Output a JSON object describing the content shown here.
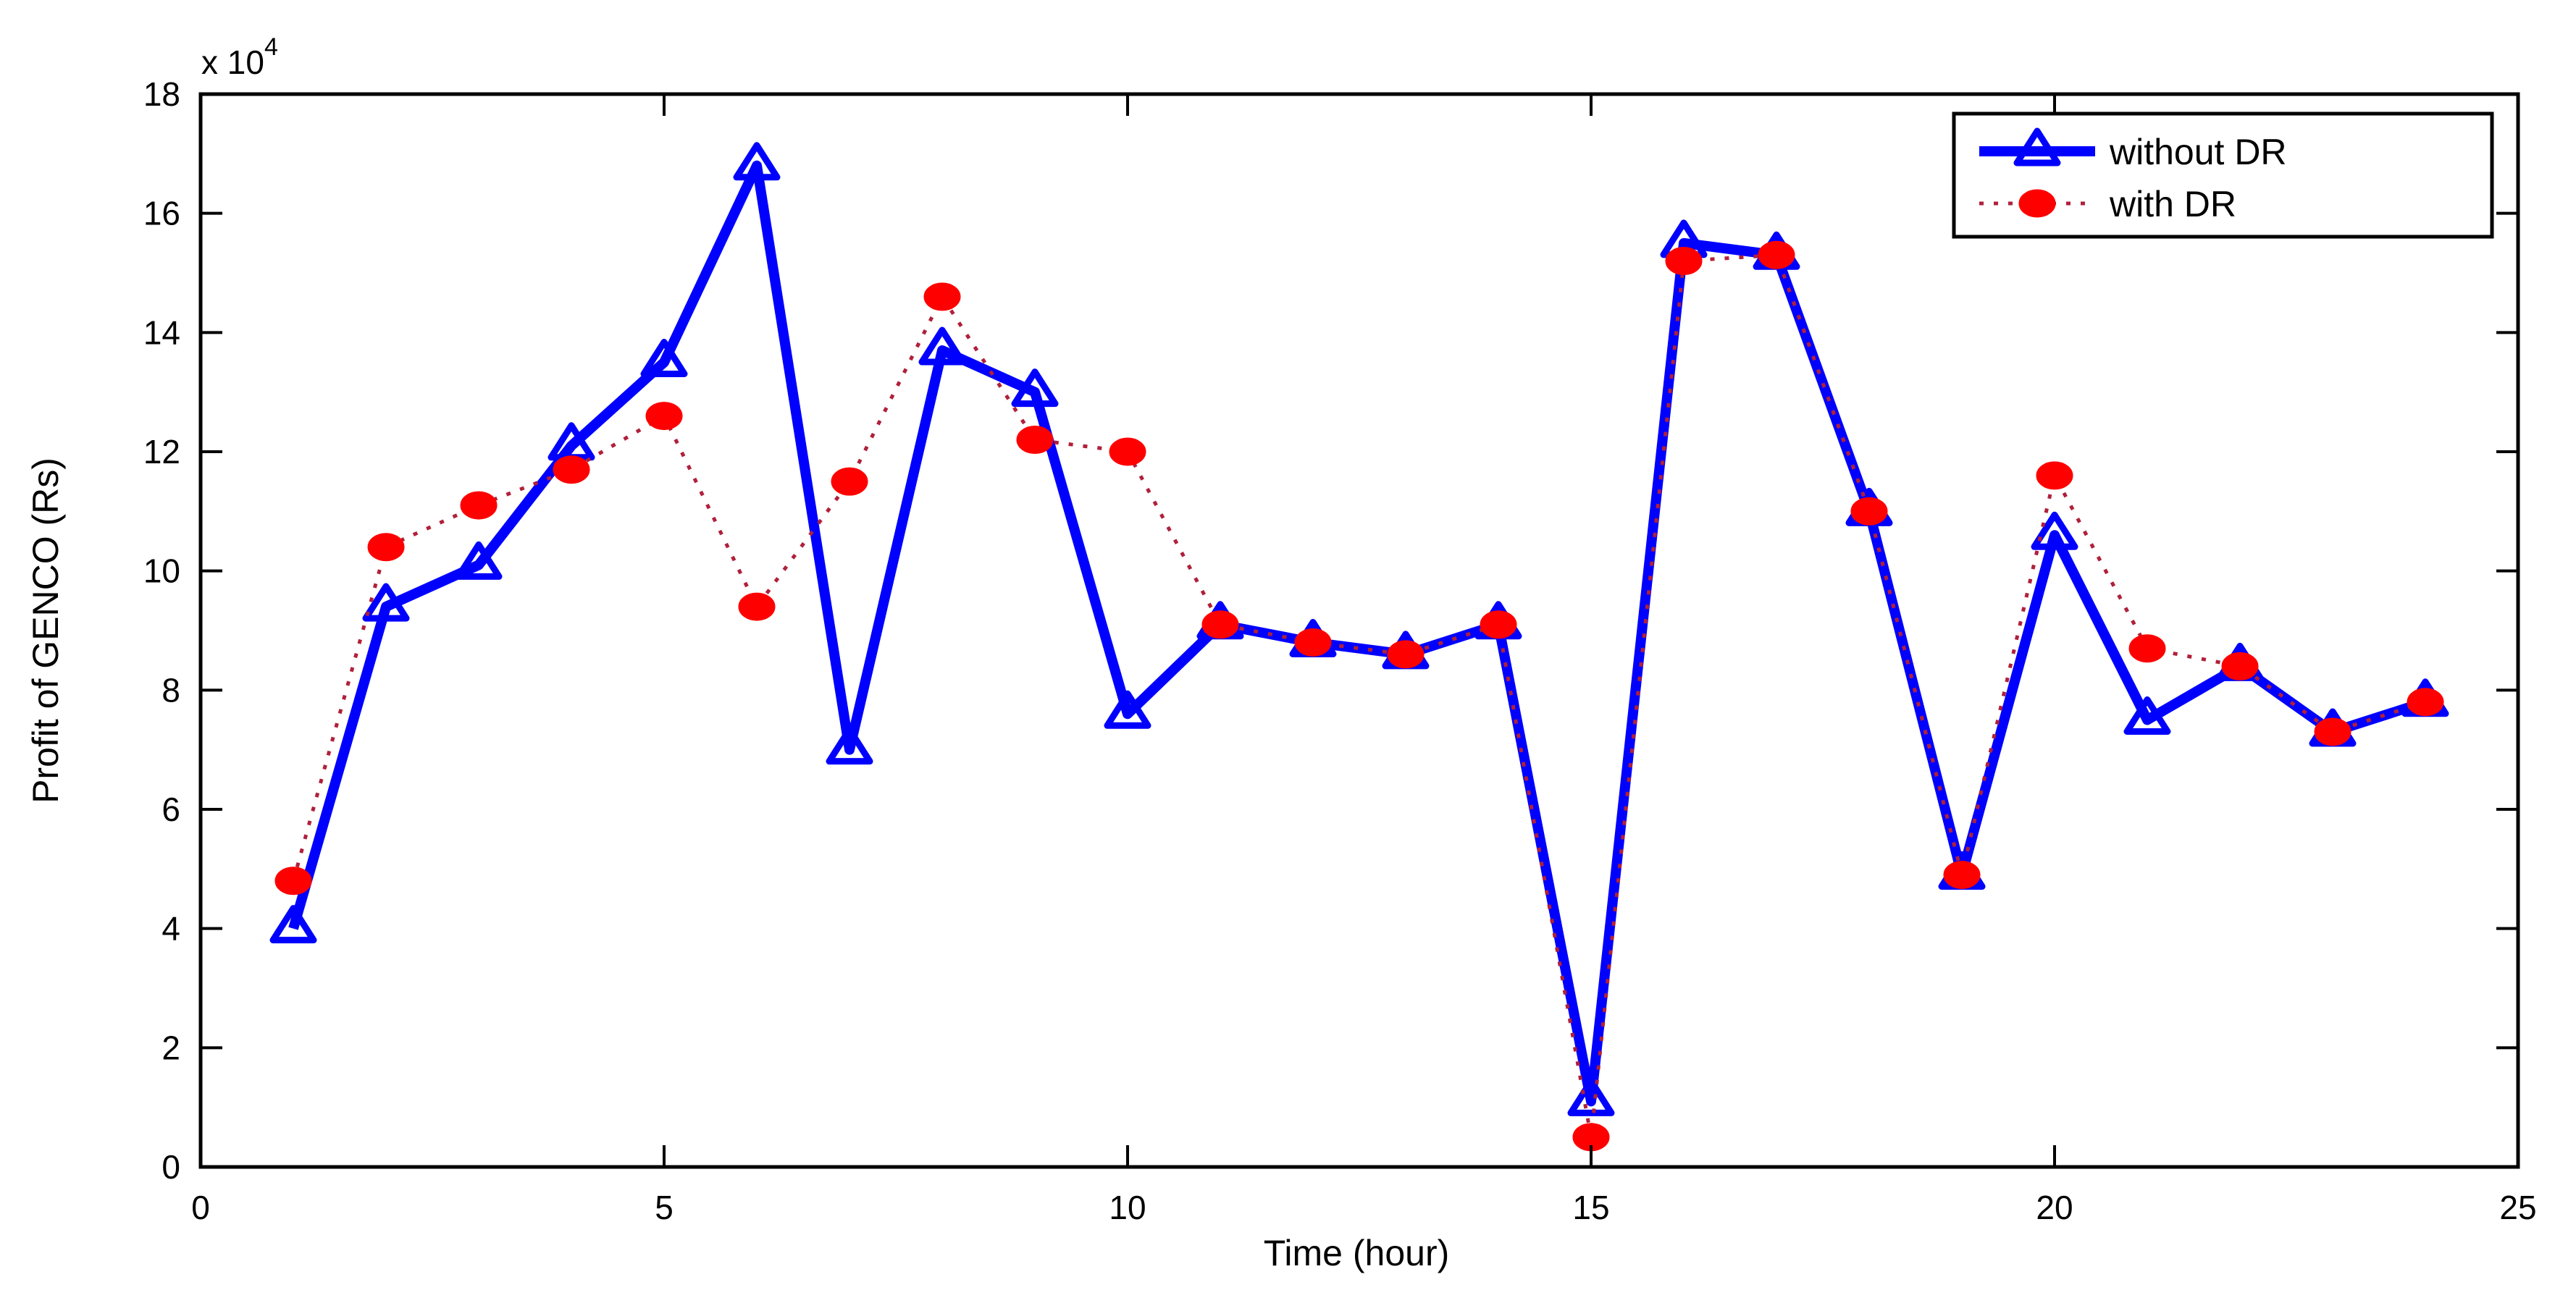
{
  "chart_data": {
    "type": "line",
    "title": "",
    "xlabel": "Time (hour)",
    "ylabel": "Profit of GENCO (Rs)",
    "y_multiplier": "x 10",
    "y_exponent": "4",
    "xlim": [
      0,
      25
    ],
    "ylim": [
      0,
      18
    ],
    "xticks": [
      0,
      5,
      10,
      15,
      20,
      25
    ],
    "yticks": [
      0,
      2,
      4,
      6,
      8,
      10,
      12,
      14,
      16,
      18
    ],
    "grid": false,
    "legend_position": "upper right",
    "x": [
      1,
      2,
      3,
      4,
      5,
      6,
      7,
      8,
      9,
      10,
      11,
      12,
      13,
      14,
      15,
      16,
      17,
      18,
      19,
      20,
      21,
      22,
      23,
      24
    ],
    "series": [
      {
        "name": "without DR",
        "color": "#0000ff",
        "line_style": "solid",
        "marker": "triangle",
        "values": [
          4.0,
          9.4,
          10.1,
          12.1,
          13.5,
          16.8,
          7.0,
          13.7,
          13.0,
          7.6,
          9.1,
          8.8,
          8.6,
          9.1,
          1.1,
          15.5,
          15.3,
          11.0,
          4.9,
          10.6,
          7.5,
          8.4,
          7.3,
          7.8
        ]
      },
      {
        "name": "with DR",
        "color": "#ff0000",
        "line_style": "dotted",
        "marker": "circle",
        "values": [
          4.8,
          10.4,
          11.1,
          11.7,
          12.6,
          9.4,
          11.5,
          14.6,
          12.2,
          12.0,
          9.1,
          8.8,
          8.6,
          9.1,
          0.5,
          15.2,
          15.3,
          11.0,
          4.9,
          11.6,
          8.7,
          8.4,
          7.3,
          7.8
        ]
      }
    ]
  }
}
